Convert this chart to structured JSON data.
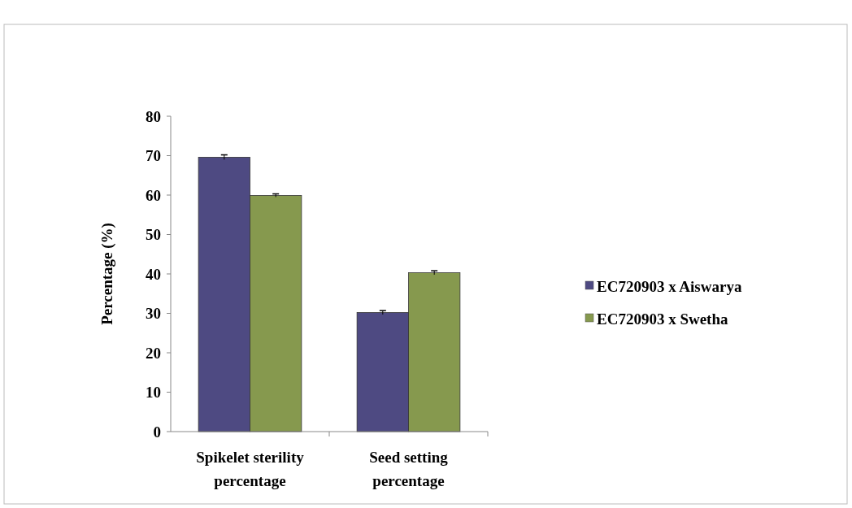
{
  "chart_data": {
    "type": "bar",
    "ylabel": "Percentage (%)",
    "categories": [
      "Spikelet sterility percentage",
      "Seed setting percentage"
    ],
    "series": [
      {
        "name": "EC720903 x Aiswarya",
        "color": "#4e4a82",
        "values": [
          69.6,
          30.2
        ],
        "errors": [
          0.6,
          0.5
        ]
      },
      {
        "name": "EC720903 x Swetha",
        "color": "#86994e",
        "values": [
          59.9,
          40.3
        ],
        "errors": [
          0.4,
          0.5
        ]
      }
    ],
    "ylim": [
      0,
      80
    ],
    "yticks": [
      0,
      10,
      20,
      30,
      40,
      50,
      60,
      70,
      80
    ],
    "grid": false,
    "legend": "right"
  }
}
